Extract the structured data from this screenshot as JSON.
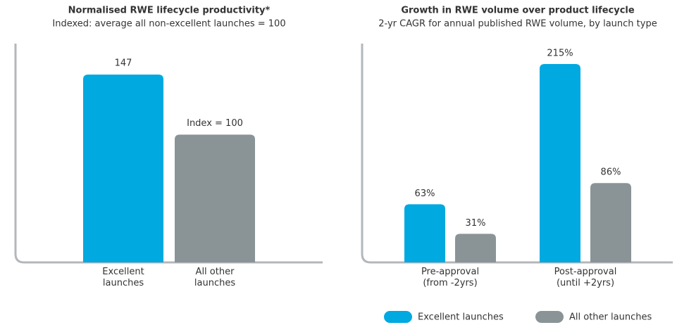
{
  "chart_data": [
    {
      "type": "bar",
      "title": "Normalised RWE lifecycle productivity*",
      "subtitle": "Indexed: average all non-excellent launches = 100",
      "categories": [
        "Excellent launches",
        "All other launches"
      ],
      "values": [
        147,
        100
      ],
      "value_labels": [
        "147",
        "Index = 100"
      ],
      "colors": [
        "#00a9e0",
        "#8a9497"
      ]
    },
    {
      "type": "grouped_bar",
      "title": "Growth in RWE volume over product lifecycle",
      "subtitle": "2-yr CAGR for annual published RWE volume, by launch type",
      "categories": [
        "Pre-approval (from -2yrs)",
        "Post-approval (until +2yrs)"
      ],
      "series": [
        {
          "name": "Excellent launches",
          "color": "#00a9e0",
          "values": [
            63,
            215
          ],
          "value_labels": [
            "63%",
            "215%"
          ]
        },
        {
          "name": "All other launches",
          "color": "#8a9497",
          "values": [
            31,
            86
          ],
          "value_labels": [
            "31%",
            "86%"
          ]
        }
      ],
      "legend": "bottom-right"
    }
  ]
}
